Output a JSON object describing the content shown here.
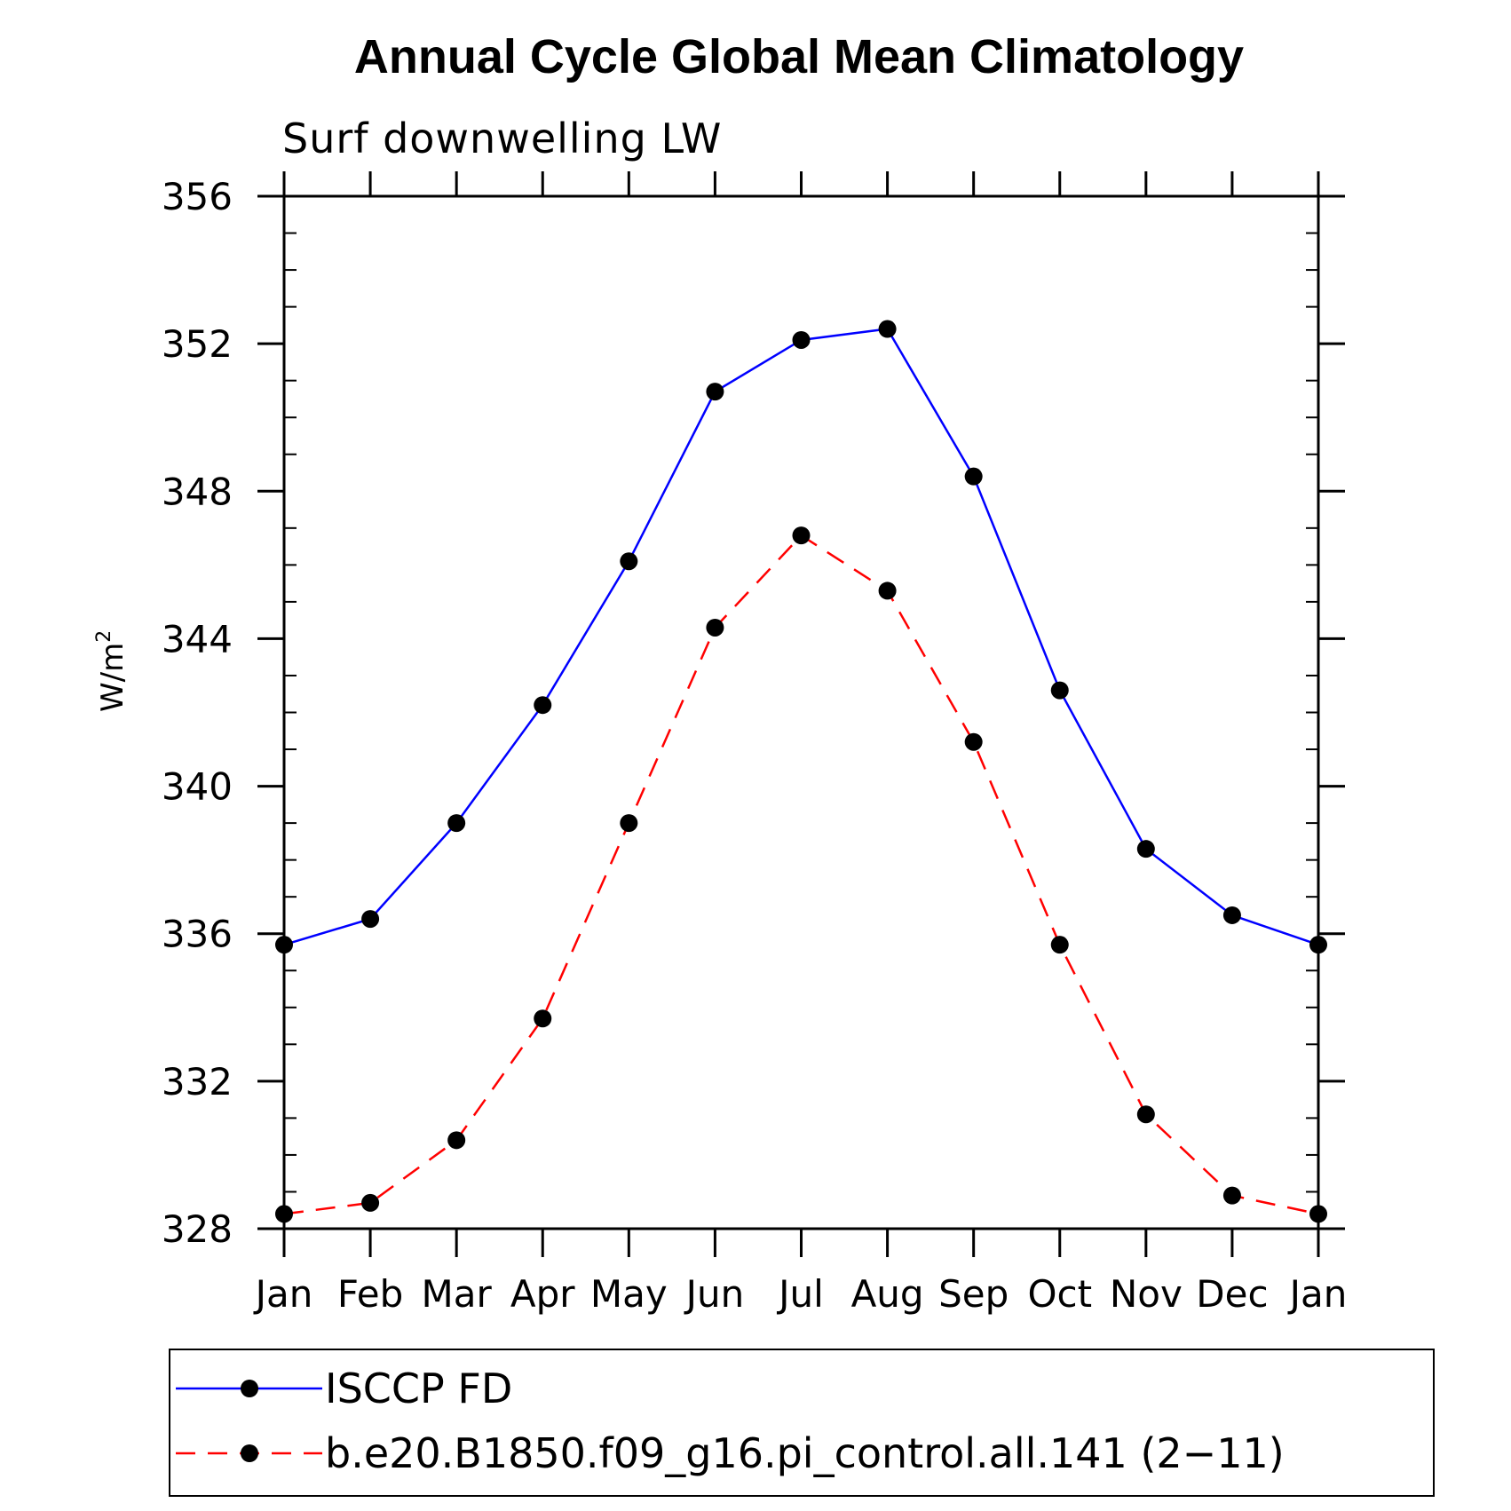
{
  "chart_data": {
    "type": "line",
    "title": "Annual Cycle Global Mean Climatology",
    "subtitle": "Surf downwelling LW",
    "xlabel": "",
    "ylabel": "W/m",
    "ylabel_sup": "2",
    "categories": [
      "Jan",
      "Feb",
      "Mar",
      "Apr",
      "May",
      "Jun",
      "Jul",
      "Aug",
      "Sep",
      "Oct",
      "Nov",
      "Dec",
      "Jan"
    ],
    "ylim": [
      328,
      356
    ],
    "yticks": [
      328,
      332,
      336,
      340,
      344,
      348,
      352,
      356
    ],
    "yminor_step": 1,
    "series": [
      {
        "name": "ISCCP FD",
        "color": "#0000ff",
        "dash": "solid",
        "values": [
          335.7,
          336.4,
          339.0,
          342.2,
          346.1,
          350.7,
          352.1,
          352.4,
          348.4,
          342.6,
          338.3,
          336.5,
          335.7
        ]
      },
      {
        "name": "b.e20.B1850.f09_g16.pi_control.all.141 (2−11)",
        "color": "#ff0000",
        "dash": "dashed",
        "values": [
          328.4,
          328.7,
          330.4,
          333.7,
          339.0,
          344.3,
          346.8,
          345.3,
          341.2,
          335.7,
          331.1,
          328.9,
          328.4
        ]
      }
    ],
    "marker": "filled-circle",
    "marker_color": "#000000",
    "legend_position": "bottom"
  }
}
